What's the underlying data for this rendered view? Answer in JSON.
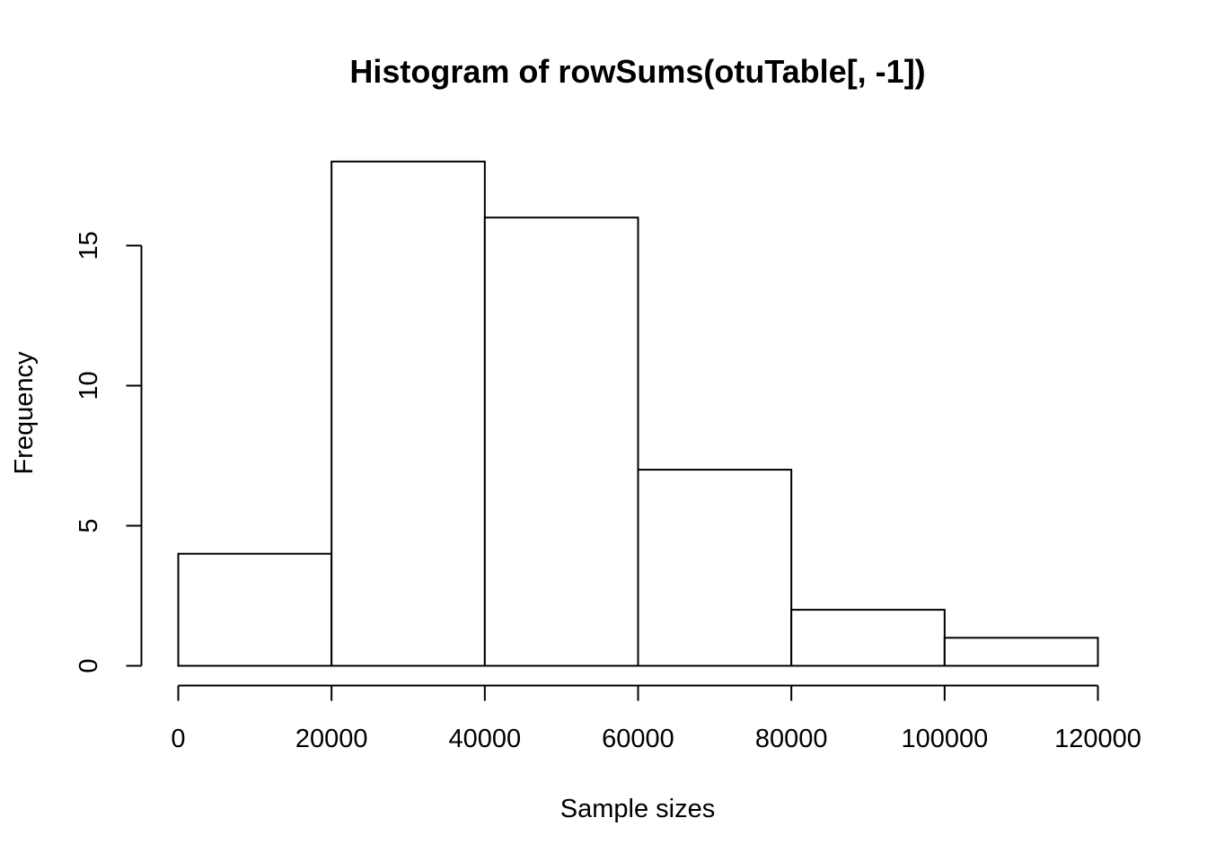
{
  "chart_data": {
    "type": "bar",
    "title": "Histogram of rowSums(otuTable[, -1])",
    "xlabel": "Sample sizes",
    "ylabel": "Frequency",
    "bins": [
      {
        "from": 0,
        "to": 20000,
        "count": 4
      },
      {
        "from": 20000,
        "to": 40000,
        "count": 18
      },
      {
        "from": 40000,
        "to": 60000,
        "count": 16
      },
      {
        "from": 60000,
        "to": 80000,
        "count": 7
      },
      {
        "from": 80000,
        "to": 100000,
        "count": 2
      },
      {
        "from": 100000,
        "to": 120000,
        "count": 1
      }
    ],
    "xticks": [
      0,
      20000,
      40000,
      60000,
      80000,
      100000,
      120000
    ],
    "xtick_labels": [
      "0",
      "20000",
      "40000",
      "60000",
      "80000",
      "100000",
      "120000"
    ],
    "yticks": [
      0,
      5,
      10,
      15
    ],
    "ytick_labels": [
      "0",
      "5",
      "10",
      "15"
    ],
    "xlim": [
      0,
      120000
    ],
    "ylim": [
      0,
      18
    ],
    "grid": false,
    "bar_fill": "#ffffff",
    "bar_stroke": "#000000"
  }
}
